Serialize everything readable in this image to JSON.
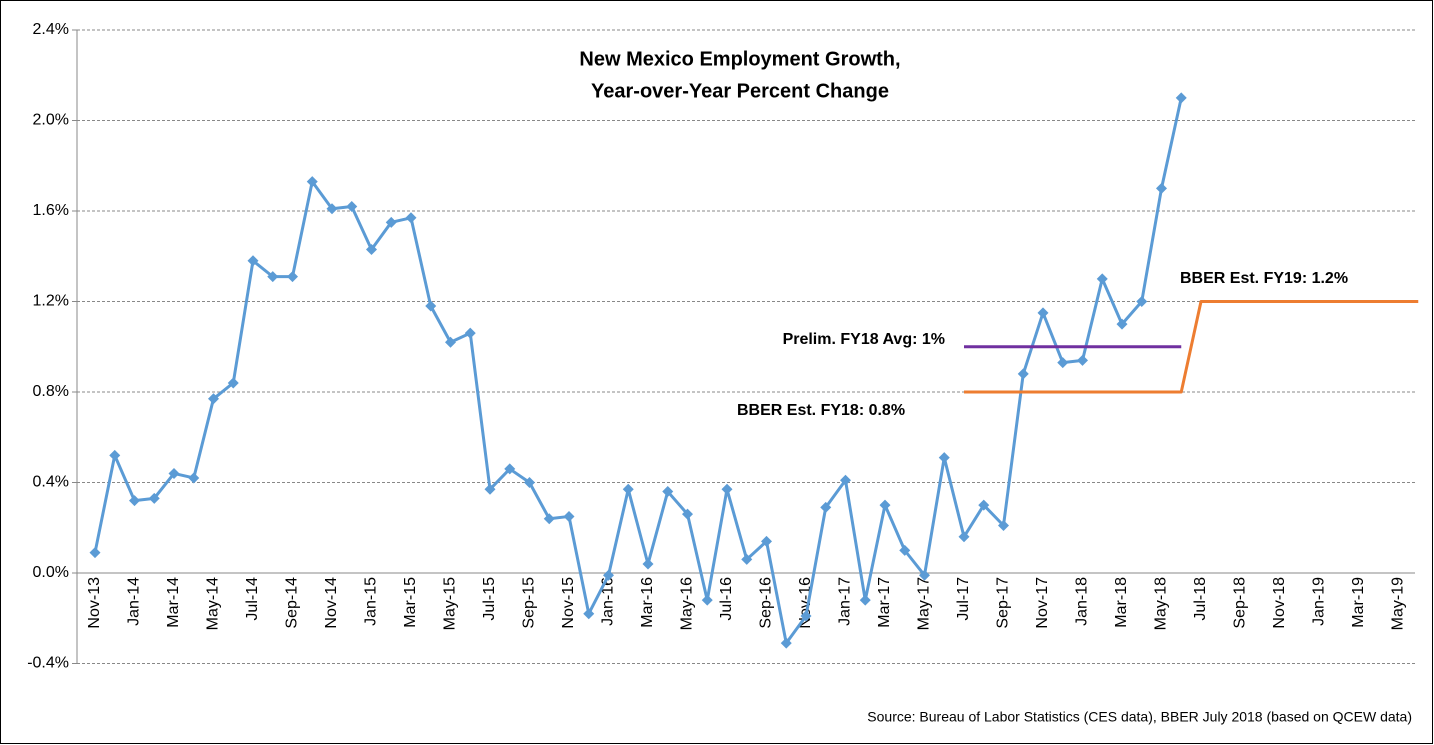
{
  "chart_data": {
    "type": "line",
    "title": [
      "New Mexico Employment Growth,",
      "Year-over-Year Percent Change"
    ],
    "categories": [
      "Nov-13",
      null,
      "Jan-14",
      null,
      "Mar-14",
      null,
      "May-14",
      null,
      "Jul-14",
      null,
      "Sep-14",
      null,
      "Nov-14",
      null,
      "Jan-15",
      null,
      "Mar-15",
      null,
      "May-15",
      null,
      "Jul-15",
      null,
      "Sep-15",
      null,
      "Nov-15",
      null,
      "Jan-16",
      null,
      "Mar-16",
      null,
      "May-16",
      null,
      "Jul-16",
      null,
      "Sep-16",
      null,
      "Nov-16",
      null,
      "Jan-17",
      null,
      "Mar-17",
      null,
      "May-17",
      null,
      "Jul-17",
      null,
      "Sep-17",
      null,
      "Nov-17",
      null,
      "Jan-18",
      null,
      "Mar-18",
      null,
      "May-18",
      null,
      "Jul-18",
      null,
      "Sep-18",
      null,
      "Nov-18",
      null,
      "Jan-19",
      null,
      "Mar-19",
      null,
      "May-19",
      null
    ],
    "series": [
      {
        "color": "#5b9bd5",
        "markers": true,
        "values": [
          0.09,
          0.52,
          0.32,
          0.33,
          0.44,
          0.42,
          0.77,
          0.84,
          1.38,
          1.31,
          1.31,
          1.73,
          1.61,
          1.62,
          1.43,
          1.55,
          1.57,
          1.18,
          1.02,
          1.06,
          0.37,
          0.46,
          0.4,
          0.24,
          0.25,
          -0.18,
          -0.01,
          0.37,
          0.04,
          0.36,
          0.26,
          -0.12,
          0.37,
          0.06,
          0.14,
          -0.31,
          -0.19,
          0.29,
          0.41,
          -0.12,
          0.3,
          0.1,
          -0.01,
          0.51,
          0.16,
          0.3,
          0.21,
          0.88,
          1.15,
          0.93,
          0.94,
          1.3,
          1.1,
          1.2,
          1.7,
          2.1,
          null,
          null,
          null,
          null,
          null,
          null,
          null,
          null,
          null,
          null,
          null,
          null
        ]
      },
      {
        "color": "#7030a0",
        "markers": false,
        "values": [
          null,
          null,
          null,
          null,
          null,
          null,
          null,
          null,
          null,
          null,
          null,
          null,
          null,
          null,
          null,
          null,
          null,
          null,
          null,
          null,
          null,
          null,
          null,
          null,
          null,
          null,
          null,
          null,
          null,
          null,
          null,
          null,
          null,
          null,
          null,
          null,
          null,
          null,
          null,
          null,
          null,
          null,
          null,
          null,
          1.0,
          1.0,
          1.0,
          1.0,
          1.0,
          1.0,
          1.0,
          1.0,
          1.0,
          1.0,
          1.0,
          1.0,
          null,
          null,
          null,
          null,
          null,
          null,
          null,
          null,
          null,
          null,
          null,
          null
        ]
      },
      {
        "color": "#ed7d31",
        "markers": false,
        "values": [
          null,
          null,
          null,
          null,
          null,
          null,
          null,
          null,
          null,
          null,
          null,
          null,
          null,
          null,
          null,
          null,
          null,
          null,
          null,
          null,
          null,
          null,
          null,
          null,
          null,
          null,
          null,
          null,
          null,
          null,
          null,
          null,
          null,
          null,
          null,
          null,
          null,
          null,
          null,
          null,
          null,
          null,
          null,
          null,
          0.8,
          0.8,
          0.8,
          0.8,
          0.8,
          0.8,
          0.8,
          0.8,
          0.8,
          0.8,
          0.8,
          0.8,
          1.2,
          1.2,
          1.2,
          1.2,
          1.2,
          1.2,
          1.2,
          1.2,
          1.2,
          1.2,
          1.2,
          1.2
        ]
      }
    ],
    "ylim": [
      -0.4,
      2.4
    ],
    "yticks": [
      {
        "value": -0.4,
        "label": "-0.4%"
      },
      {
        "value": 0.0,
        "label": "0.0%"
      },
      {
        "value": 0.4,
        "label": "0.4%"
      },
      {
        "value": 0.8,
        "label": "0.8%"
      },
      {
        "value": 1.2,
        "label": "1.2%"
      },
      {
        "value": 1.6,
        "label": "1.6%"
      },
      {
        "value": 2.0,
        "label": "2.0%"
      },
      {
        "value": 2.4,
        "label": "2.4%"
      }
    ],
    "grid": true,
    "annotations": [
      "Prelim. FY18 Avg: 1%",
      "BBER Est. FY18: 0.8%",
      "BBER Est. FY19: 1.2%"
    ],
    "source": "Source: Bureau of Labor Statistics (CES data), BBER July 2018 (based on QCEW data)"
  }
}
